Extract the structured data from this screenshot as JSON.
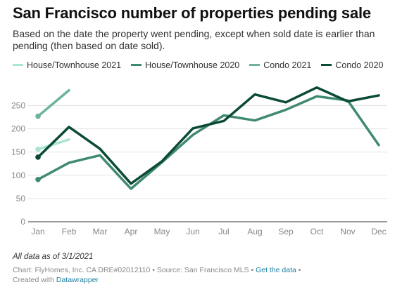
{
  "title": "San Francisco number of properties pending sale",
  "subtitle": "Based on the date the property went pending, except when sold date is earlier than pending (then based on date sold).",
  "note": "All data as of 3/1/2021",
  "footer": {
    "credit": "Chart: FlyHomes, Inc. CA DRE#02012110 • Source: San Francisco MLS • ",
    "get_data": "Get the data",
    "sep": " •",
    "created_with": "Created with ",
    "datawrapper": "Datawrapper"
  },
  "chart_data": {
    "type": "line",
    "categories": [
      "Jan",
      "Feb",
      "Mar",
      "Apr",
      "May",
      "Jun",
      "Jul",
      "Aug",
      "Sep",
      "Oct",
      "Nov",
      "Dec"
    ],
    "yticks": [
      0,
      50,
      100,
      150,
      200,
      250
    ],
    "ylim": [
      0,
      290
    ],
    "grid": true,
    "legend_position": "top",
    "series": [
      {
        "name": "House/Townhouse 2021",
        "color": "#a9e5d3",
        "values": [
          156,
          177,
          null,
          null,
          null,
          null,
          null,
          null,
          null,
          null,
          null,
          null
        ]
      },
      {
        "name": "House/Townhouse 2020",
        "color": "#3f8a70",
        "values": [
          91,
          127,
          143,
          71,
          128,
          187,
          229,
          218,
          241,
          270,
          261,
          165
        ]
      },
      {
        "name": "Condo 2021",
        "color": "#6cb39a",
        "values": [
          227,
          283,
          null,
          null,
          null,
          null,
          null,
          null,
          null,
          null,
          null,
          null
        ]
      },
      {
        "name": "Condo 2020",
        "color": "#0b4a36",
        "values": [
          139,
          204,
          157,
          82,
          130,
          201,
          217,
          274,
          257,
          289,
          259,
          272
        ]
      }
    ]
  }
}
